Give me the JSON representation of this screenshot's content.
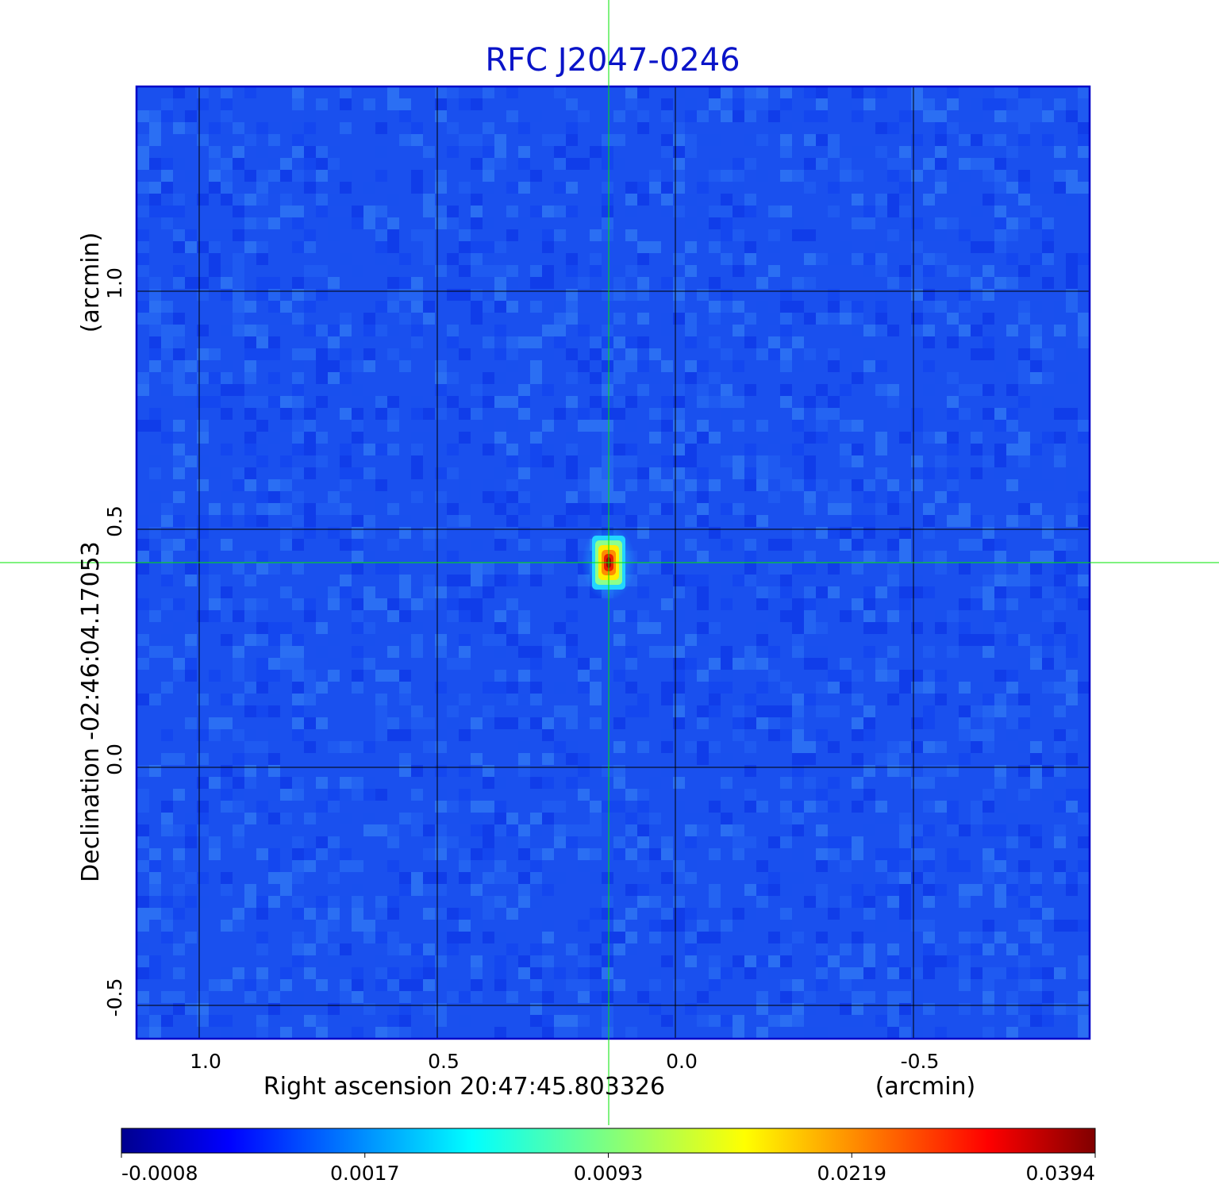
{
  "chart_data": {
    "type": "heatmap",
    "title": "RFC J2047-0246",
    "xlabel": "Right ascension  20:47:45.803326",
    "xunit": "(arcmin)",
    "ylabel": "Declination  -02:46:04.17053",
    "yunit": "(arcmin)",
    "x_ticks": [
      "1.0",
      "0.5",
      "0.0",
      "-0.5"
    ],
    "x_tick_values": [
      1.0,
      0.5,
      0.0,
      -0.5
    ],
    "y_ticks": [
      "1.0",
      "0.5",
      "0.0",
      "-0.5"
    ],
    "y_tick_values": [
      1.0,
      0.5,
      0.0,
      -0.5
    ],
    "xlim": [
      1.13,
      -0.87
    ],
    "ylim": [
      -0.57,
      1.43
    ],
    "x_reversed": true,
    "grid": true,
    "colormap": "jet",
    "colorbar": {
      "ticks": [
        "-0.0008",
        "0.0017",
        "0.0093",
        "0.0219",
        "0.0394"
      ],
      "range": [
        -0.0008,
        0.0394
      ],
      "placement": "bottom"
    },
    "background_level": "-0.0008 to 0.0017",
    "source_peak": {
      "x": 0.14,
      "y": 0.43,
      "value": 0.0394
    },
    "crosshair": {
      "x": 0.14,
      "y": 0.43,
      "color": "#00e600"
    }
  },
  "colors": {
    "title": "#0a14c8",
    "frame": "#0000c8",
    "grid": "#000000",
    "crosshair": "#00e600"
  }
}
